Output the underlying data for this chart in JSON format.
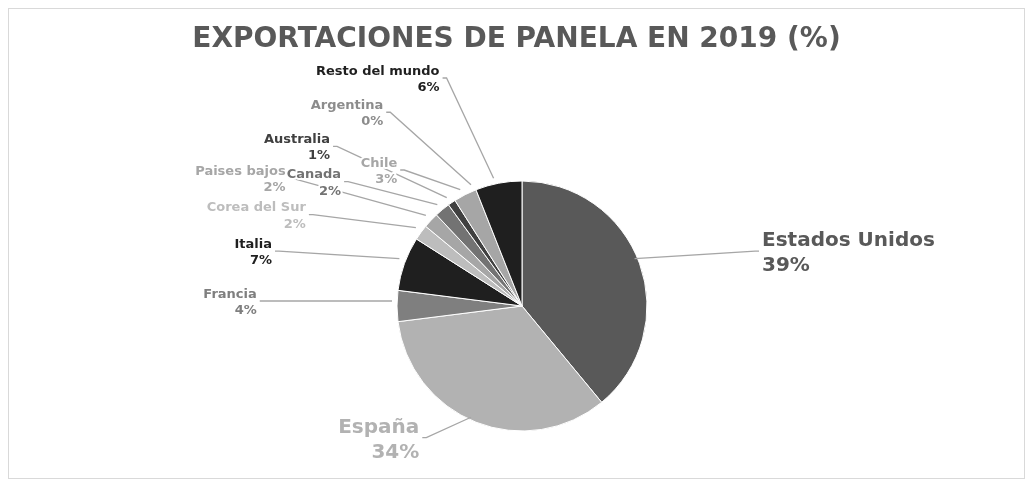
{
  "chart_data": {
    "type": "pie",
    "title": "EXPORTACIONES DE PANELA EN 2019 (%)",
    "categories": [
      "Estados Unidos",
      "España",
      "Francia",
      "Italia",
      "Corea del Sur",
      "Paises bajos",
      "Canada",
      "Australia",
      "Chile",
      "Argentina",
      "Resto del mundo"
    ],
    "values": [
      39,
      34,
      4,
      7,
      2,
      2,
      2,
      1,
      3,
      0,
      6
    ],
    "value_labels": [
      "39%",
      "34%",
      "4%",
      "7%",
      "2%",
      "2%",
      "2%",
      "1%",
      "3%",
      "0%",
      "6%"
    ],
    "colors": [
      "#595959",
      "#b2b2b2",
      "#7f7f7f",
      "#1f1f1f",
      "#bdbdbd",
      "#a6a6a6",
      "#737373",
      "#404040",
      "#a6a6a6",
      "#8c8c8c",
      "#1f1f1f"
    ]
  }
}
